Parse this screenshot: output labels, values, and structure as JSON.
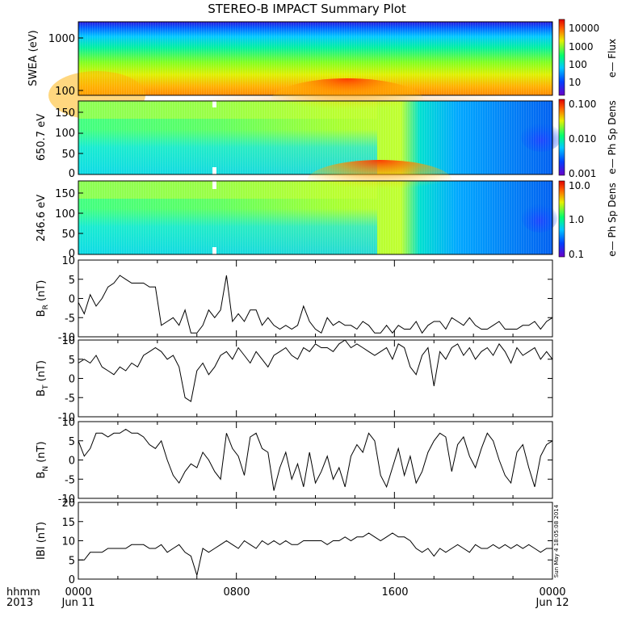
{
  "title": "STEREO-B IMPACT Summary Plot",
  "footer": {
    "left_top": "hhmm",
    "left_bottom": "2013",
    "ticks": [
      {
        "top": "0000",
        "bottom": "Jun 11"
      },
      {
        "top": "0800",
        "bottom": ""
      },
      {
        "top": "1600",
        "bottom": ""
      },
      {
        "top": "0000",
        "bottom": "Jun 12"
      }
    ]
  },
  "timestamp": "Sun May  4 18:05:08 2014",
  "chart_data": [
    {
      "type": "heatmap",
      "id": "swea",
      "ylabel": "SWEA (eV)",
      "yticks": [
        "1000",
        "100"
      ],
      "colorbar_label": "e— Flux",
      "colorbar_ticks": [
        "10000",
        "1000",
        "100",
        "10"
      ],
      "colors": [
        "#6a00c8",
        "#0040ff",
        "#00c8ff",
        "#00ff70",
        "#e8f000",
        "#ff6000",
        "#e00000"
      ]
    },
    {
      "type": "heatmap",
      "id": "pa650",
      "ylabel": "650.7 eV",
      "yticks": [
        "150",
        "100",
        "50",
        "0"
      ],
      "colorbar_label": "e— Ph Sp Dens",
      "colorbar_ticks": [
        "0.100",
        "0.010",
        "0.001"
      ]
    },
    {
      "type": "heatmap",
      "id": "pa246",
      "ylabel": "246.6 eV",
      "yticks": [
        "150",
        "100",
        "50",
        "0"
      ],
      "colorbar_label": "e— Ph Sp Dens",
      "colorbar_ticks": [
        "10.0",
        "1.0",
        "0.1"
      ]
    },
    {
      "type": "line",
      "id": "br",
      "ylabel": "B",
      "ylabel_sub": "R",
      "ylabel_unit": " (nT)",
      "ylim": [
        -10,
        10
      ],
      "yticks": [
        "10",
        "5",
        "0",
        "-5",
        "-10"
      ],
      "x": [
        0,
        0.3,
        0.6,
        0.9,
        1.2,
        1.5,
        1.8,
        2.1,
        2.4,
        2.7,
        3.0,
        3.3,
        3.6,
        3.9,
        4.2,
        4.5,
        4.8,
        5.1,
        5.4,
        5.7,
        6.0,
        6.3,
        6.6,
        6.9,
        7.2,
        7.5,
        7.8,
        8.1,
        8.4,
        8.7,
        9.0,
        9.3,
        9.6,
        9.9,
        10.2,
        10.5,
        10.8,
        11.1,
        11.4,
        11.7,
        12.0,
        12.3,
        12.6,
        12.9,
        13.2,
        13.5,
        13.8,
        14.1,
        14.4,
        14.7,
        15.0,
        15.3,
        15.6,
        15.9,
        16.2,
        16.5,
        16.8,
        17.1,
        17.4,
        17.7,
        18.0,
        18.3,
        18.6,
        18.9,
        19.2,
        19.5,
        19.8,
        20.1,
        20.4,
        20.7,
        21.0,
        21.3,
        21.6,
        21.9,
        22.2,
        22.5,
        22.8,
        23.1,
        23.4,
        23.7,
        24.0
      ],
      "values": [
        -1,
        -4,
        1,
        -2,
        0,
        3,
        4,
        6,
        5,
        4,
        4,
        4,
        3,
        3,
        -7,
        -6,
        -5,
        -7,
        -3,
        -9,
        -9,
        -7,
        -3,
        -5,
        -3,
        6,
        -6,
        -4,
        -6,
        -3,
        -3,
        -7,
        -5,
        -7,
        -8,
        -7,
        -8,
        -7,
        -2,
        -6,
        -8,
        -9,
        -5,
        -7,
        -6,
        -7,
        -7,
        -8,
        -6,
        -7,
        -9,
        -9,
        -7,
        -9,
        -7,
        -8,
        -8,
        -6,
        -9,
        -7,
        -6,
        -6,
        -8,
        -5,
        -6,
        -7,
        -5,
        -7,
        -8,
        -8,
        -7,
        -6,
        -8,
        -8,
        -8,
        -7,
        -7,
        -6,
        -8,
        -6,
        -5
      ]
    },
    {
      "type": "line",
      "id": "bt",
      "ylabel": "B",
      "ylabel_sub": "T",
      "ylabel_unit": " (nT)",
      "ylim": [
        -10,
        10
      ],
      "yticks": [
        "10",
        "5",
        "0",
        "-5",
        "-10"
      ],
      "x": [
        0,
        0.3,
        0.6,
        0.9,
        1.2,
        1.5,
        1.8,
        2.1,
        2.4,
        2.7,
        3.0,
        3.3,
        3.6,
        3.9,
        4.2,
        4.5,
        4.8,
        5.1,
        5.4,
        5.7,
        6.0,
        6.3,
        6.6,
        6.9,
        7.2,
        7.5,
        7.8,
        8.1,
        8.4,
        8.7,
        9.0,
        9.3,
        9.6,
        9.9,
        10.2,
        10.5,
        10.8,
        11.1,
        11.4,
        11.7,
        12.0,
        12.3,
        12.6,
        12.9,
        13.2,
        13.5,
        13.8,
        14.1,
        14.4,
        14.7,
        15.0,
        15.3,
        15.6,
        15.9,
        16.2,
        16.5,
        16.8,
        17.1,
        17.4,
        17.7,
        18.0,
        18.3,
        18.6,
        18.9,
        19.2,
        19.5,
        19.8,
        20.1,
        20.4,
        20.7,
        21.0,
        21.3,
        21.6,
        21.9,
        22.2,
        22.5,
        22.8,
        23.1,
        23.4,
        23.7,
        24.0
      ],
      "values": [
        4,
        5,
        4,
        6,
        3,
        2,
        1,
        3,
        2,
        4,
        3,
        6,
        7,
        8,
        7,
        5,
        6,
        3,
        -5,
        -6,
        2,
        4,
        1,
        3,
        6,
        7,
        5,
        8,
        6,
        4,
        7,
        5,
        3,
        6,
        7,
        8,
        6,
        5,
        8,
        7,
        9,
        8,
        8,
        7,
        9,
        10,
        8,
        9,
        8,
        7,
        6,
        7,
        8,
        5,
        9,
        8,
        3,
        1,
        6,
        8,
        -2,
        7,
        5,
        8,
        9,
        6,
        8,
        5,
        7,
        8,
        6,
        9,
        7,
        4,
        8,
        6,
        7,
        8,
        5,
        7,
        5
      ]
    },
    {
      "type": "line",
      "id": "bn",
      "ylabel": "B",
      "ylabel_sub": "N",
      "ylabel_unit": " (nT)",
      "ylim": [
        -10,
        10
      ],
      "yticks": [
        "10",
        "5",
        "0",
        "-5",
        "-10"
      ],
      "x": [
        0,
        0.3,
        0.6,
        0.9,
        1.2,
        1.5,
        1.8,
        2.1,
        2.4,
        2.7,
        3.0,
        3.3,
        3.6,
        3.9,
        4.2,
        4.5,
        4.8,
        5.1,
        5.4,
        5.7,
        6.0,
        6.3,
        6.6,
        6.9,
        7.2,
        7.5,
        7.8,
        8.1,
        8.4,
        8.7,
        9.0,
        9.3,
        9.6,
        9.9,
        10.2,
        10.5,
        10.8,
        11.1,
        11.4,
        11.7,
        12.0,
        12.3,
        12.6,
        12.9,
        13.2,
        13.5,
        13.8,
        14.1,
        14.4,
        14.7,
        15.0,
        15.3,
        15.6,
        15.9,
        16.2,
        16.5,
        16.8,
        17.1,
        17.4,
        17.7,
        18.0,
        18.3,
        18.6,
        18.9,
        19.2,
        19.5,
        19.8,
        20.1,
        20.4,
        20.7,
        21.0,
        21.3,
        21.6,
        21.9,
        22.2,
        22.5,
        22.8,
        23.1,
        23.4,
        23.7,
        24.0
      ],
      "values": [
        5,
        1,
        3,
        7,
        7,
        6,
        7,
        7,
        8,
        7,
        7,
        6,
        4,
        3,
        5,
        0,
        -4,
        -6,
        -3,
        -1,
        -2,
        2,
        0,
        -3,
        -5,
        7,
        3,
        1,
        -4,
        6,
        7,
        3,
        2,
        -8,
        -2,
        2,
        -5,
        -1,
        -7,
        2,
        -6,
        -3,
        1,
        -5,
        -2,
        -7,
        1,
        4,
        2,
        7,
        5,
        -4,
        -7,
        -2,
        3,
        -4,
        1,
        -6,
        -3,
        2,
        5,
        7,
        6,
        -3,
        4,
        6,
        1,
        -2,
        3,
        7,
        5,
        0,
        -4,
        -6,
        2,
        4,
        -2,
        -7,
        1,
        4,
        5
      ]
    },
    {
      "type": "line",
      "id": "bmag",
      "ylabel": "IBI (nT)",
      "ylim": [
        0,
        20
      ],
      "yticks": [
        "20",
        "15",
        "10",
        "5",
        "0"
      ],
      "x": [
        0,
        0.3,
        0.6,
        0.9,
        1.2,
        1.5,
        1.8,
        2.1,
        2.4,
        2.7,
        3.0,
        3.3,
        3.6,
        3.9,
        4.2,
        4.5,
        4.8,
        5.1,
        5.4,
        5.7,
        6.0,
        6.3,
        6.6,
        6.9,
        7.2,
        7.5,
        7.8,
        8.1,
        8.4,
        8.7,
        9.0,
        9.3,
        9.6,
        9.9,
        10.2,
        10.5,
        10.8,
        11.1,
        11.4,
        11.7,
        12.0,
        12.3,
        12.6,
        12.9,
        13.2,
        13.5,
        13.8,
        14.1,
        14.4,
        14.7,
        15.0,
        15.3,
        15.6,
        15.9,
        16.2,
        16.5,
        16.8,
        17.1,
        17.4,
        17.7,
        18.0,
        18.3,
        18.6,
        18.9,
        19.2,
        19.5,
        19.8,
        20.1,
        20.4,
        20.7,
        21.0,
        21.3,
        21.6,
        21.9,
        22.2,
        22.5,
        22.8,
        23.1,
        23.4,
        23.7,
        24.0
      ],
      "values": [
        5,
        5,
        7,
        7,
        7,
        8,
        8,
        8,
        8,
        9,
        9,
        9,
        8,
        8,
        9,
        7,
        8,
        9,
        7,
        6,
        1,
        8,
        7,
        8,
        9,
        10,
        9,
        8,
        10,
        9,
        8,
        10,
        9,
        10,
        9,
        10,
        9,
        9,
        10,
        10,
        10,
        10,
        9,
        10,
        10,
        11,
        10,
        11,
        11,
        12,
        11,
        10,
        11,
        12,
        11,
        11,
        10,
        8,
        7,
        8,
        6,
        8,
        7,
        8,
        9,
        8,
        7,
        9,
        8,
        8,
        9,
        8,
        9,
        8,
        9,
        8,
        9,
        8,
        7,
        8,
        8
      ]
    }
  ]
}
